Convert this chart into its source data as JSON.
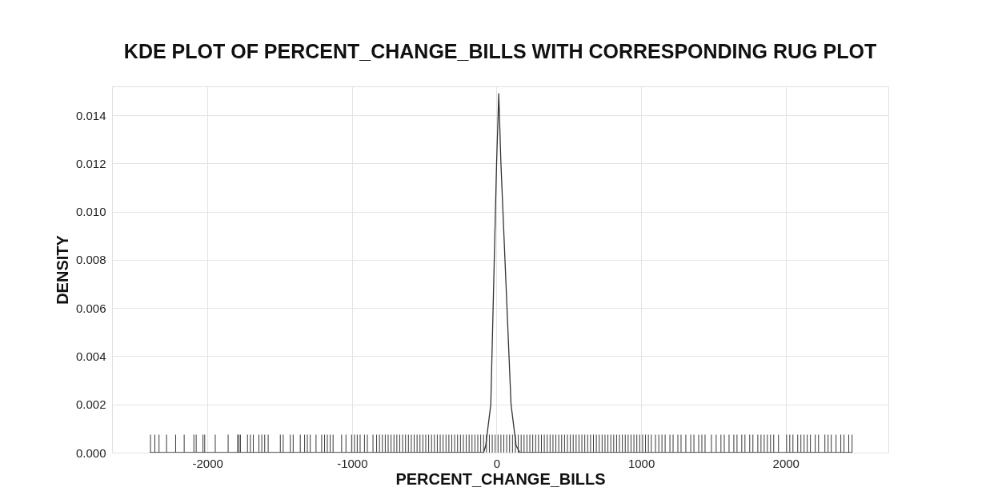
{
  "chart_data": {
    "type": "line",
    "title": "KDE PLOT OF PERCENT_CHANGE_BILLS WITH CORRESPONDING RUG PLOT",
    "xlabel": "PERCENT_CHANGE_BILLS",
    "ylabel": "DENSITY",
    "xlim": [
      -2660,
      2710
    ],
    "ylim": [
      0,
      0.0152
    ],
    "xticks": [
      -2000,
      -1000,
      0,
      1000,
      2000
    ],
    "yticks": [
      {
        "value": 0,
        "label": "0.000"
      },
      0.002,
      0.004,
      0.006,
      0.008,
      {
        "value": 0.01,
        "label": "0.010"
      },
      0.012,
      0.014
    ],
    "grid": true,
    "series": [
      {
        "type": "bar",
        "color": "#3a3a3a",
        "x": [
          -2394,
          -2364,
          -2335,
          -2283,
          -2220,
          -2161,
          -2094,
          -2078,
          -2031,
          -2019,
          -1946,
          -1857,
          -1792,
          -1782,
          -1772,
          -1723,
          -1703,
          -1683,
          -1644,
          -1624,
          -1604,
          -1580,
          -1496,
          -1476,
          -1427,
          -1407,
          -1358,
          -1328,
          -1309,
          -1289,
          -1249,
          -1210,
          -1190,
          -1171,
          -1151,
          -1131,
          -1072,
          -1042,
          -1003,
          -983,
          -964,
          -944,
          -914,
          -894,
          -855,
          -830,
          -810,
          -790,
          -770,
          -750,
          -730,
          -710,
          -690,
          -670,
          -650,
          -630,
          -610,
          -590,
          -570,
          -550,
          -530,
          -510,
          -490,
          -470,
          -450,
          -430,
          -410,
          -390,
          -370,
          -350,
          -330,
          -310,
          -290,
          -270,
          -250,
          -230,
          -210,
          -190,
          -170,
          -150,
          -130,
          -110,
          -90,
          -70,
          -50,
          -30,
          -10,
          10,
          30,
          50,
          70,
          90,
          110,
          130,
          150,
          170,
          190,
          210,
          230,
          250,
          270,
          290,
          310,
          330,
          350,
          370,
          390,
          410,
          430,
          450,
          470,
          490,
          510,
          530,
          550,
          570,
          590,
          610,
          630,
          650,
          670,
          690,
          710,
          730,
          750,
          770,
          790,
          810,
          830,
          850,
          870,
          890,
          910,
          930,
          950,
          970,
          990,
          1010,
          1030,
          1050,
          1070,
          1099,
          1122,
          1144,
          1166,
          1199,
          1221,
          1254,
          1276,
          1309,
          1343,
          1365,
          1398,
          1420,
          1442,
          1486,
          1519,
          1552,
          1575,
          1608,
          1641,
          1663,
          1696,
          1718,
          1751,
          1773,
          1807,
          1829,
          1851,
          1873,
          1895,
          1917,
          1950,
          2006,
          2028,
          2050,
          2083,
          2105,
          2127,
          2149,
          2171,
          2204,
          2227,
          2271,
          2293,
          2315,
          2348,
          2381,
          2403,
          2436,
          2459
        ],
        "values": [
          0.00075,
          0.00075,
          0.00075,
          0.00075,
          0.00075,
          0.00075,
          0.00075,
          0.00075,
          0.00075,
          0.00075,
          0.00075,
          0.00075,
          0.00075,
          0.00075,
          0.00075,
          0.00075,
          0.00075,
          0.00075,
          0.00075,
          0.00075,
          0.00075,
          0.00075,
          0.00075,
          0.00075,
          0.00075,
          0.00075,
          0.00075,
          0.00075,
          0.00075,
          0.00075,
          0.00075,
          0.00075,
          0.00075,
          0.00075,
          0.00075,
          0.00075,
          0.00075,
          0.00075,
          0.00075,
          0.00075,
          0.00075,
          0.00075,
          0.00075,
          0.00075,
          0.00075,
          0.00075,
          0.00075,
          0.00075,
          0.00075,
          0.00075,
          0.00075,
          0.00075,
          0.00075,
          0.00075,
          0.00075,
          0.00075,
          0.00075,
          0.00075,
          0.00075,
          0.00075,
          0.00075,
          0.00075,
          0.00075,
          0.00075,
          0.00075,
          0.00075,
          0.00075,
          0.00075,
          0.00075,
          0.00075,
          0.00075,
          0.00075,
          0.00075,
          0.00075,
          0.00075,
          0.00075,
          0.00075,
          0.00075,
          0.00075,
          0.00075,
          0.00075,
          0.00075,
          0.00075,
          0.00075,
          0.00075,
          0.00075,
          0.00075,
          0.00075,
          0.00075,
          0.00075,
          0.00075,
          0.00075,
          0.00075,
          0.00075,
          0.00075,
          0.00075,
          0.00075,
          0.00075,
          0.00075,
          0.00075,
          0.00075,
          0.00075,
          0.00075,
          0.00075,
          0.00075,
          0.00075,
          0.00075,
          0.00075,
          0.00075,
          0.00075,
          0.00075,
          0.00075,
          0.00075,
          0.00075,
          0.00075,
          0.00075,
          0.00075,
          0.00075,
          0.00075,
          0.00075,
          0.00075,
          0.00075,
          0.00075,
          0.00075,
          0.00075,
          0.00075,
          0.00075,
          0.00075,
          0.00075,
          0.00075,
          0.00075,
          0.00075,
          0.00075,
          0.00075,
          0.00075,
          0.00075,
          0.00075,
          0.00075,
          0.00075,
          0.00075,
          0.00075,
          0.00075,
          0.00075,
          0.00075,
          0.00075,
          0.00075,
          0.00075,
          0.00075,
          0.00075,
          0.00075,
          0.00075,
          0.00075,
          0.00075,
          0.00075,
          0.00075,
          0.00075,
          0.00075,
          0.00075,
          0.00075,
          0.00075,
          0.00075,
          0.00075,
          0.00075,
          0.00075,
          0.00075,
          0.00075,
          0.00075,
          0.00075,
          0.00075,
          0.00075,
          0.00075,
          0.00075,
          0.00075,
          0.00075,
          0.00075,
          0.00075,
          0.00075,
          0.00075,
          0.00075,
          0.00075,
          0.00075,
          0.00075,
          0.00075,
          0.00075,
          0.00075,
          0.00075,
          0.00075,
          0.00075,
          0.00075,
          0.00075,
          0.00075
        ]
      },
      {
        "color": "#333333",
        "x": [
          -2400,
          -90,
          -75,
          -40,
          0,
          15,
          30,
          100,
          135,
          160,
          2460
        ],
        "values": [
          0,
          0,
          0.0003,
          0.002,
          0.012,
          0.0149,
          0.012,
          0.002,
          0.0003,
          0,
          0
        ]
      }
    ]
  }
}
